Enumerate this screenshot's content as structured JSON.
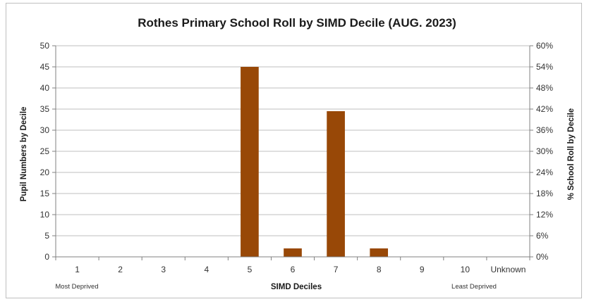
{
  "chart_data": {
    "type": "bar",
    "title": "Rothes Primary School Roll by SIMD Decile (AUG. 2023)",
    "xlabel": "SIMD Deciles",
    "ylabel": "Pupil Numbers by Decile",
    "y2label": "% School Roll by Decile",
    "categories": [
      "1",
      "2",
      "3",
      "4",
      "5",
      "6",
      "7",
      "8",
      "9",
      "10",
      "Unknown"
    ],
    "values": [
      0,
      0,
      0,
      0,
      45,
      2,
      34.5,
      2,
      0,
      0,
      0
    ],
    "ylim": [
      0,
      50
    ],
    "yticks": [
      "0",
      "5",
      "10",
      "15",
      "20",
      "25",
      "30",
      "35",
      "40",
      "45",
      "50"
    ],
    "y2lim": [
      0,
      60
    ],
    "y2ticks": [
      "0%",
      "6%",
      "12%",
      "18%",
      "24%",
      "30%",
      "36%",
      "42%",
      "48%",
      "54%",
      "60%"
    ],
    "x_note_left": "Most Deprived",
    "x_note_right": "Least Deprived",
    "grid": "horizontal",
    "bar_color": "#984807",
    "grid_color": "#bfbfbf"
  }
}
